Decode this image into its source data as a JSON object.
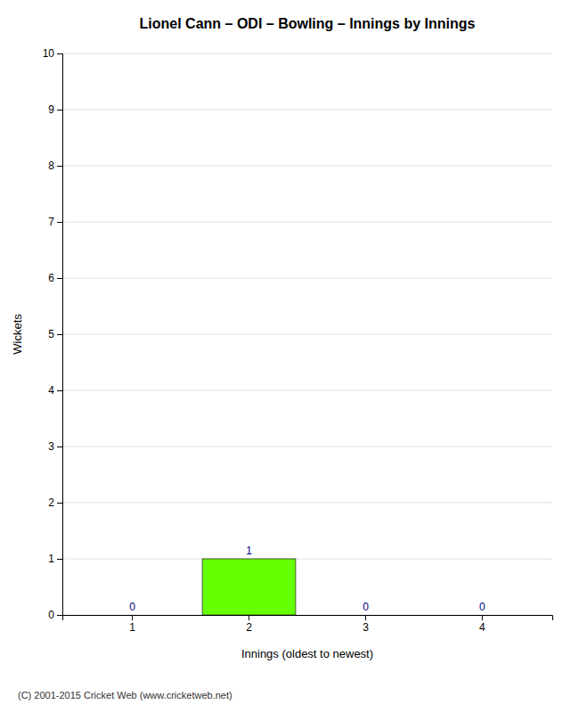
{
  "chart_data": {
    "type": "bar",
    "title": "Lionel Cann – ODI – Bowling – Innings by Innings",
    "x_label": "Innings (oldest to newest)",
    "y_label": "Wickets",
    "categories": [
      "1",
      "2",
      "3",
      "4"
    ],
    "values": [
      0,
      1,
      0,
      0
    ],
    "color": "#66ff00",
    "data_labels": true,
    "ylim": [
      0,
      10
    ],
    "yticks": [
      0,
      1,
      2,
      3,
      4,
      5,
      6,
      7,
      8,
      9,
      10
    ],
    "grid": true,
    "annotations": [
      "(C) 2001-2015 Cricket Web (www.cricketweb.net)"
    ]
  }
}
